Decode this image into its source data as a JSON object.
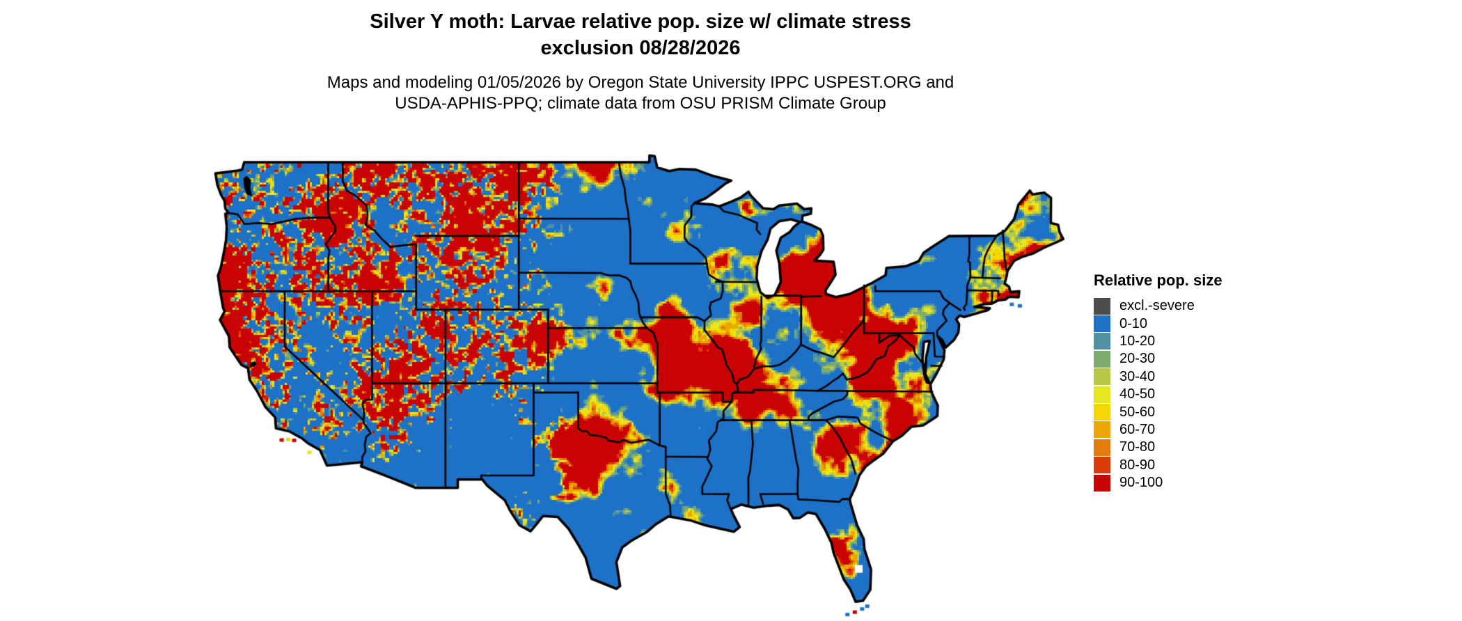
{
  "page": {
    "background": "#ffffff"
  },
  "header": {
    "title_line1": "Silver Y moth: Larvae relative pop. size w/ climate stress",
    "title_line2": "exclusion 08/28/2026",
    "subtitle_line1": "Maps and modeling 01/05/2026 by Oregon State University IPPC USPEST.ORG and",
    "subtitle_line2": "USDA-APHIS-PPQ; climate data from OSU PRISM Climate Group"
  },
  "legend": {
    "title": "Relative pop. size",
    "entries": [
      {
        "label": "excl.-severe",
        "color": "#4d4d4d"
      },
      {
        "label": "0-10",
        "color": "#1d72c8"
      },
      {
        "label": "10-20",
        "color": "#4e92a2"
      },
      {
        "label": "20-30",
        "color": "#7cab70"
      },
      {
        "label": "30-40",
        "color": "#b8c843"
      },
      {
        "label": "40-50",
        "color": "#e7e622"
      },
      {
        "label": "50-60",
        "color": "#f4d701"
      },
      {
        "label": "60-70",
        "color": "#eaa702"
      },
      {
        "label": "70-80",
        "color": "#e17c07"
      },
      {
        "label": "80-90",
        "color": "#da3d0b"
      },
      {
        "label": "90-100",
        "color": "#c90303"
      }
    ]
  },
  "map": {
    "region": "Contiguous United States",
    "content": "Raster map of Silver Y moth larvae relative population size with climate stress exclusion; state boundaries drawn in black, water shown white",
    "border_color": "#000000",
    "water_color": "#ffffff"
  }
}
